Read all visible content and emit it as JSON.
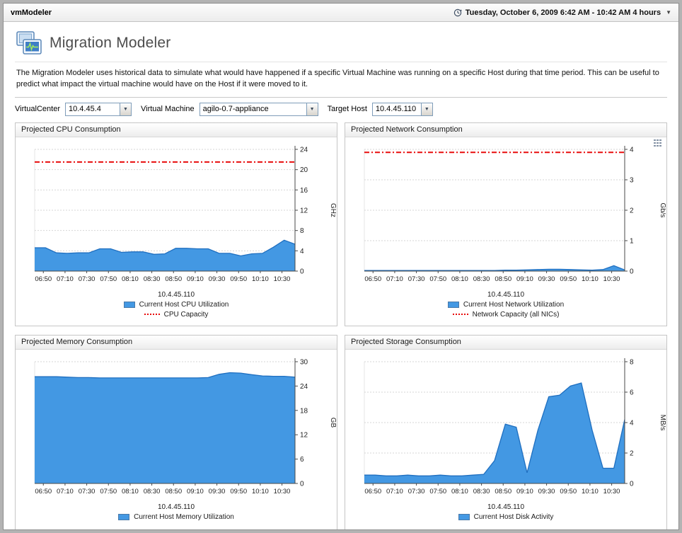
{
  "app": {
    "title": "vmModeler",
    "time_range": "Tuesday, October 6, 2009 6:42 AM - 10:42 AM 4 hours"
  },
  "page": {
    "title": "Migration Modeler",
    "description": "The Migration Modeler uses historical data to simulate what would have happened if a specific Virtual Machine was running on a specific Host during that time period. This can be useful to predict what impact the virtual machine would have on the Host if it were moved to it."
  },
  "filters": [
    {
      "label": "VirtualCenter",
      "value": "10.4.45.4"
    },
    {
      "label": "Virtual Machine",
      "value": "agilo-0.7-appliance"
    },
    {
      "label": "Target Host",
      "value": "10.4.45.110"
    }
  ],
  "colors": {
    "series_fill": "#4398e3",
    "series_line": "#1f6fc0",
    "capacity_red": "#e80c0c"
  },
  "chart_data": [
    {
      "type": "area",
      "title": "Projected CPU Consumption",
      "xlabel": "10.4.45.110",
      "unit": "GHz",
      "ylim": [
        0,
        24
      ],
      "yticks": [
        0,
        4,
        8,
        12,
        16,
        20,
        24
      ],
      "x_ticks": [
        "06:50",
        "07:10",
        "07:30",
        "07:50",
        "08:10",
        "08:30",
        "08:50",
        "09:10",
        "09:30",
        "09:50",
        "10:10",
        "10:30"
      ],
      "series": [
        {
          "name": "Current Host CPU Utilization",
          "color": "#4398e3",
          "line_color": "#1f6fc0",
          "values": [
            4.6,
            4.6,
            3.6,
            3.5,
            3.6,
            3.6,
            4.4,
            4.4,
            3.7,
            3.8,
            3.8,
            3.3,
            3.4,
            4.5,
            4.5,
            4.4,
            4.4,
            3.5,
            3.5,
            3.0,
            3.4,
            3.5,
            4.7,
            6.1,
            5.3
          ]
        }
      ],
      "capacity": {
        "name": "CPU Capacity",
        "value": 21.5,
        "color": "#e80c0c"
      }
    },
    {
      "type": "area",
      "title": "Projected Network Consumption",
      "xlabel": "10.4.45.110",
      "unit": "Gb/s",
      "ylim": [
        0,
        4
      ],
      "yticks": [
        0,
        1,
        2,
        3,
        4
      ],
      "x_ticks": [
        "06:50",
        "07:10",
        "07:30",
        "07:50",
        "08:10",
        "08:30",
        "08:50",
        "09:10",
        "09:30",
        "09:50",
        "10:10",
        "10:30"
      ],
      "series": [
        {
          "name": "Current Host Network Utilization",
          "color": "#4398e3",
          "line_color": "#1f6fc0",
          "values": [
            0.02,
            0.02,
            0.02,
            0.02,
            0.02,
            0.02,
            0.02,
            0.02,
            0.02,
            0.02,
            0.02,
            0.02,
            0.02,
            0.03,
            0.03,
            0.04,
            0.05,
            0.06,
            0.06,
            0.05,
            0.04,
            0.03,
            0.05,
            0.18,
            0.04
          ]
        }
      ],
      "capacity": {
        "name": "Network Capacity (all NICs)",
        "value": 3.9,
        "color": "#e80c0c"
      },
      "has_grid_icon": true
    },
    {
      "type": "area",
      "title": "Projected Memory Consumption",
      "xlabel": "10.4.45.110",
      "unit": "GB",
      "ylim": [
        0,
        30
      ],
      "yticks": [
        0,
        6,
        12,
        18,
        24,
        30
      ],
      "x_ticks": [
        "06:50",
        "07:10",
        "07:30",
        "07:50",
        "08:10",
        "08:30",
        "08:50",
        "09:10",
        "09:30",
        "09:50",
        "10:10",
        "10:30"
      ],
      "series": [
        {
          "name": "Current Host Memory Utilization",
          "color": "#4398e3",
          "line_color": "#1f6fc0",
          "values": [
            26.3,
            26.3,
            26.3,
            26.2,
            26.1,
            26.1,
            26.0,
            26.0,
            26.0,
            26.0,
            26.0,
            26.0,
            26.0,
            26.0,
            26.0,
            26.0,
            26.1,
            26.9,
            27.3,
            27.2,
            26.8,
            26.5,
            26.4,
            26.4,
            26.2
          ]
        }
      ],
      "capacity": null
    },
    {
      "type": "area",
      "title": "Projected Storage Consumption",
      "xlabel": "10.4.45.110",
      "unit": "MB/s",
      "ylim": [
        0,
        8
      ],
      "yticks": [
        0,
        2,
        4,
        6,
        8
      ],
      "x_ticks": [
        "06:50",
        "07:10",
        "07:30",
        "07:50",
        "08:10",
        "08:30",
        "08:50",
        "09:10",
        "09:30",
        "09:50",
        "10:10",
        "10:30"
      ],
      "series": [
        {
          "name": "Current Host Disk Activity",
          "color": "#4398e3",
          "line_color": "#1f6fc0",
          "values": [
            0.55,
            0.55,
            0.5,
            0.5,
            0.55,
            0.5,
            0.5,
            0.55,
            0.5,
            0.5,
            0.55,
            0.6,
            1.5,
            3.9,
            3.7,
            0.7,
            3.5,
            5.7,
            5.8,
            6.4,
            6.6,
            3.5,
            1.0,
            1.0,
            4.2
          ]
        }
      ],
      "capacity": null
    }
  ]
}
